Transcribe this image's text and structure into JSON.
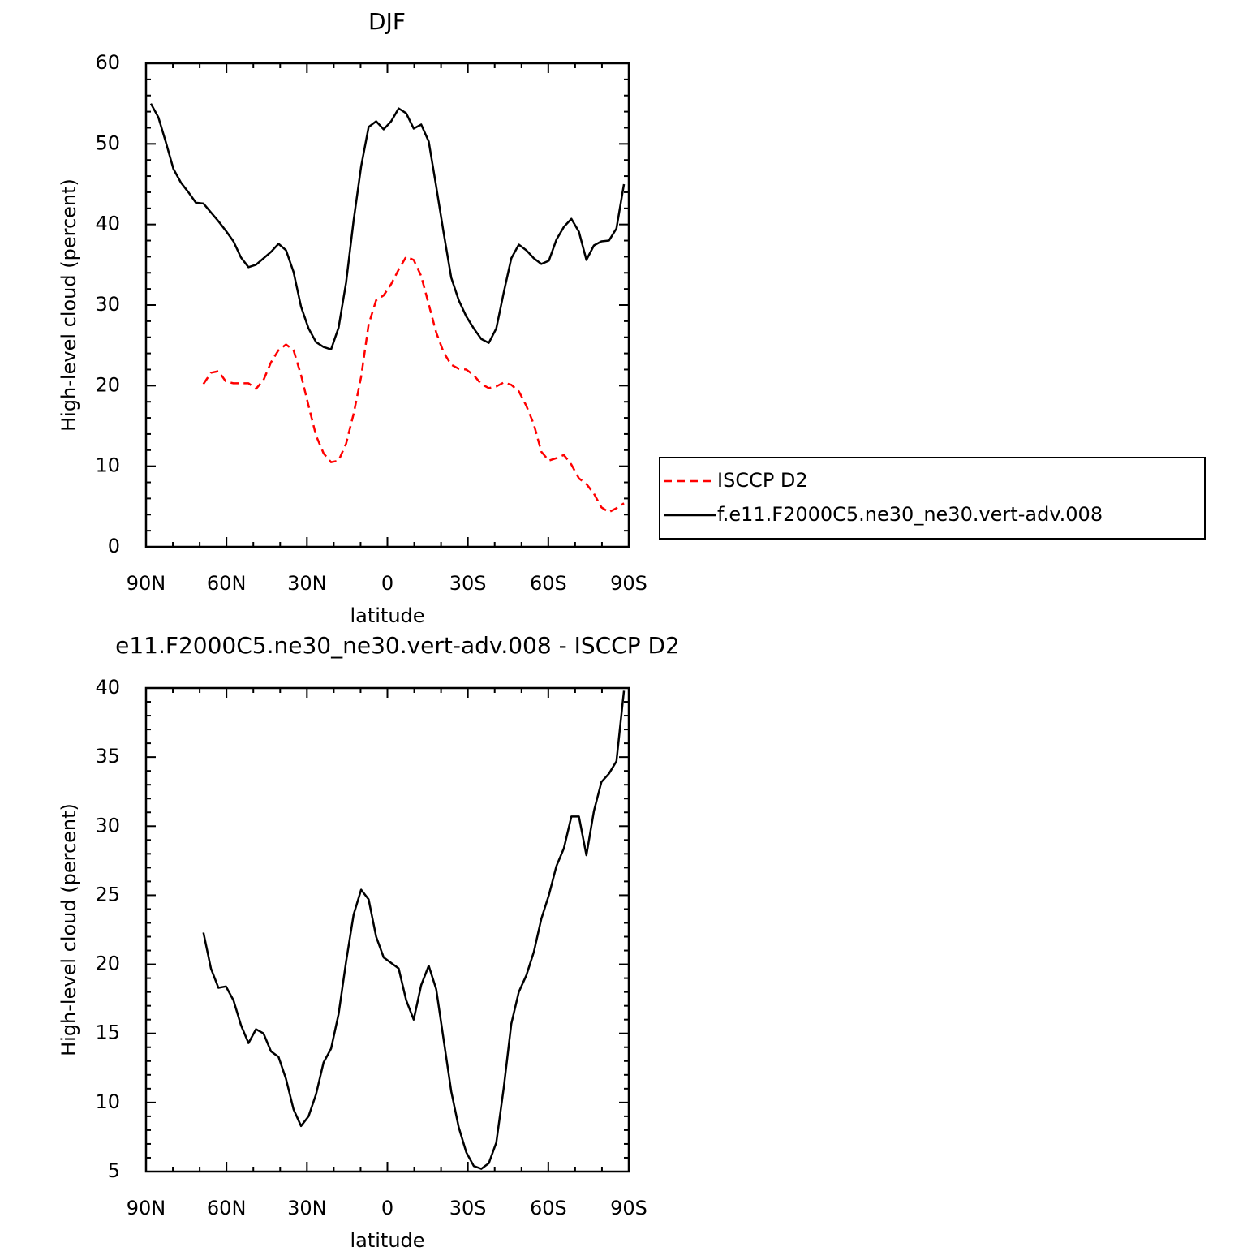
{
  "chart_data": [
    {
      "type": "line",
      "title": "DJF",
      "xlabel": "latitude",
      "ylabel": "High-level cloud (percent)",
      "x": [
        88.2,
        85.4,
        82.6,
        79.8,
        77,
        74.2,
        71.4,
        68.6,
        65.8,
        63,
        60.2,
        57.4,
        54.6,
        51.8,
        49,
        46.2,
        43.4,
        40.6,
        37.8,
        35,
        32.2,
        29.4,
        26.6,
        23.8,
        21,
        18.2,
        15.4,
        12.6,
        9.8,
        7,
        4.2,
        1.4,
        -1.4,
        -4.2,
        -7,
        -9.8,
        -12.6,
        -15.4,
        -18.2,
        -21,
        -23.8,
        -26.6,
        -29.4,
        -32.2,
        -35,
        -37.8,
        -40.6,
        -43.4,
        -46.2,
        -49,
        -51.8,
        -54.6,
        -57.4,
        -60.2,
        -63,
        -65.8,
        -68.6,
        -71.4,
        -74.2,
        -77,
        -79.8,
        -82.6,
        -85.4,
        -88.2
      ],
      "series": [
        {
          "name": "ISCCP D2",
          "color": "#ff0000",
          "dashed": true,
          "values": [
            null,
            null,
            null,
            null,
            null,
            null,
            null,
            20.2,
            21.6,
            21.8,
            20.5,
            20.3,
            20.3,
            20.3,
            19.6,
            20.7,
            22.9,
            24.4,
            25.1,
            24.4,
            21.3,
            17.5,
            13.8,
            11.6,
            10.5,
            10.7,
            12.8,
            16.5,
            21.1,
            27.6,
            30.6,
            31.2,
            32.6,
            34.4,
            36.0,
            35.6,
            33.6,
            30.1,
            26.6,
            24.1,
            22.6,
            22.1,
            22.0,
            21.3,
            20.2,
            19.7,
            19.9,
            20.4,
            20.1,
            19.3,
            17.5,
            15.2,
            11.8,
            10.7,
            11.0,
            11.4,
            10.2,
            8.5,
            7.8,
            6.6,
            4.9,
            4.3,
            4.8,
            5.4
          ]
        },
        {
          "name": "f.e11.F2000C5.ne30_ne30.vert-adv.008",
          "color": "#000000",
          "dashed": false,
          "values": [
            55.0,
            53.3,
            50.2,
            46.9,
            45.2,
            44.0,
            42.7,
            42.6,
            41.5,
            40.4,
            39.2,
            37.9,
            35.9,
            34.7,
            35.0,
            35.8,
            36.6,
            37.6,
            36.8,
            34.1,
            29.8,
            27.1,
            25.4,
            24.8,
            24.5,
            27.2,
            32.8,
            40.5,
            47.2,
            52.1,
            52.8,
            51.8,
            52.8,
            54.4,
            53.8,
            51.9,
            52.4,
            50.3,
            44.7,
            38.9,
            33.4,
            30.6,
            28.6,
            27.1,
            25.8,
            25.3,
            27.1,
            31.6,
            35.8,
            37.5,
            36.8,
            35.8,
            35.1,
            35.5,
            38.1,
            39.7,
            40.7,
            39.1,
            35.6,
            37.4,
            37.9,
            38.0,
            39.5,
            45.0
          ]
        }
      ],
      "xlim": [
        90,
        -90
      ],
      "xticks": [
        {
          "value": 90,
          "label": "90N"
        },
        {
          "value": 60,
          "label": "60N"
        },
        {
          "value": 30,
          "label": "30N"
        },
        0,
        {
          "value": -30,
          "label": "30S"
        },
        {
          "value": -60,
          "label": "60S"
        },
        {
          "value": -90,
          "label": "90S"
        }
      ],
      "xminorticks": [
        80,
        70,
        50,
        40,
        20,
        10,
        -10,
        -20,
        -40,
        -50,
        -70,
        -80
      ],
      "ylim": [
        0,
        60
      ],
      "yticks": [
        0,
        10,
        20,
        30,
        40,
        50,
        60
      ],
      "yminorticks": [
        2,
        4,
        6,
        8,
        12,
        14,
        16,
        18,
        22,
        24,
        26,
        28,
        32,
        34,
        36,
        38,
        42,
        44,
        46,
        48,
        52,
        54,
        56,
        58
      ]
    },
    {
      "type": "line",
      "title": "e11.F2000C5.ne30_ne30.vert-adv.008 - ISCCP D2",
      "xlabel": "latitude",
      "ylabel": "High-level cloud (percent)",
      "x": [
        88.2,
        85.4,
        82.6,
        79.8,
        77,
        74.2,
        71.4,
        68.6,
        65.8,
        63,
        60.2,
        57.4,
        54.6,
        51.8,
        49,
        46.2,
        43.4,
        40.6,
        37.8,
        35,
        32.2,
        29.4,
        26.6,
        23.8,
        21,
        18.2,
        15.4,
        12.6,
        9.8,
        7,
        4.2,
        1.4,
        -1.4,
        -4.2,
        -7,
        -9.8,
        -12.6,
        -15.4,
        -18.2,
        -21,
        -23.8,
        -26.6,
        -29.4,
        -32.2,
        -35,
        -37.8,
        -40.6,
        -43.4,
        -46.2,
        -49,
        -51.8,
        -54.6,
        -57.4,
        -60.2,
        -63,
        -65.8,
        -68.6,
        -71.4,
        -74.2,
        -77,
        -79.8,
        -82.6,
        -85.4,
        -88.2
      ],
      "color": "#000000",
      "values": [
        null,
        null,
        null,
        null,
        null,
        null,
        null,
        22.3,
        19.7,
        18.3,
        18.4,
        17.4,
        15.6,
        14.3,
        15.3,
        15.0,
        13.7,
        13.3,
        11.7,
        9.5,
        8.3,
        9.0,
        10.6,
        12.9,
        13.9,
        16.4,
        20.2,
        23.6,
        25.4,
        24.7,
        22.0,
        20.5,
        20.1,
        19.7,
        17.4,
        16.0,
        18.5,
        19.9,
        18.2,
        14.5,
        10.8,
        8.2,
        6.4,
        5.4,
        5.2,
        5.6,
        7.1,
        11.1,
        15.7,
        18.0,
        19.2,
        20.9,
        23.3,
        25.0,
        27.1,
        28.4,
        30.7,
        30.7,
        27.9,
        31.1,
        33.2,
        33.8,
        34.7,
        39.8
      ],
      "xlim": [
        90,
        -90
      ],
      "xticks": [
        {
          "value": 90,
          "label": "90N"
        },
        {
          "value": 60,
          "label": "60N"
        },
        {
          "value": 30,
          "label": "30N"
        },
        0,
        {
          "value": -30,
          "label": "30S"
        },
        {
          "value": -60,
          "label": "60S"
        },
        {
          "value": -90,
          "label": "90S"
        }
      ],
      "xminorticks": [
        80,
        70,
        50,
        40,
        20,
        10,
        -10,
        -20,
        -40,
        -50,
        -70,
        -80
      ],
      "ylim": [
        5,
        40
      ],
      "yticks": [
        5,
        10,
        15,
        20,
        25,
        30,
        35,
        40
      ],
      "yminorticks": [
        6,
        7,
        8,
        9,
        11,
        12,
        13,
        14,
        16,
        17,
        18,
        19,
        21,
        22,
        23,
        24,
        26,
        27,
        28,
        29,
        31,
        32,
        33,
        34,
        36,
        37,
        38,
        39
      ]
    }
  ]
}
